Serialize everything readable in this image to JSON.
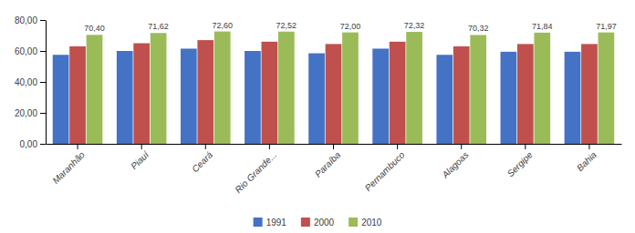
{
  "chart_data": {
    "type": "bar",
    "categories": [
      "Maranhão",
      "Piauí",
      "Ceará",
      "Rio Grande...",
      "Paraíba",
      "Pernambuco",
      "Alagoas",
      "Sergipe",
      "Bahia"
    ],
    "series": [
      {
        "name": "1991",
        "color": "#4472C4",
        "values": [
          57.5,
          60.0,
          61.5,
          60.0,
          58.5,
          61.5,
          57.5,
          59.5,
          59.5
        ]
      },
      {
        "name": "2000",
        "color": "#C0504D",
        "values": [
          63.0,
          65.0,
          67.0,
          66.0,
          64.5,
          66.0,
          63.0,
          64.5,
          64.5
        ]
      },
      {
        "name": "2010",
        "color": "#9BBB59",
        "values": [
          70.4,
          71.62,
          72.6,
          72.52,
          72.0,
          72.32,
          70.32,
          71.84,
          71.97
        ],
        "value_labels": [
          "70,40",
          "71,62",
          "72,60",
          "72,52",
          "72,00",
          "72,32",
          "70,32",
          "71,84",
          "71,97"
        ]
      }
    ],
    "ylim": [
      0,
      80
    ],
    "yticks": [
      {
        "value": 0,
        "label": "0,00"
      },
      {
        "value": 20,
        "label": "20,00"
      },
      {
        "value": 40,
        "label": "40,00"
      },
      {
        "value": 60,
        "label": "60,00"
      },
      {
        "value": 80,
        "label": "80,00"
      }
    ],
    "grid": false,
    "legend": "bottom"
  }
}
